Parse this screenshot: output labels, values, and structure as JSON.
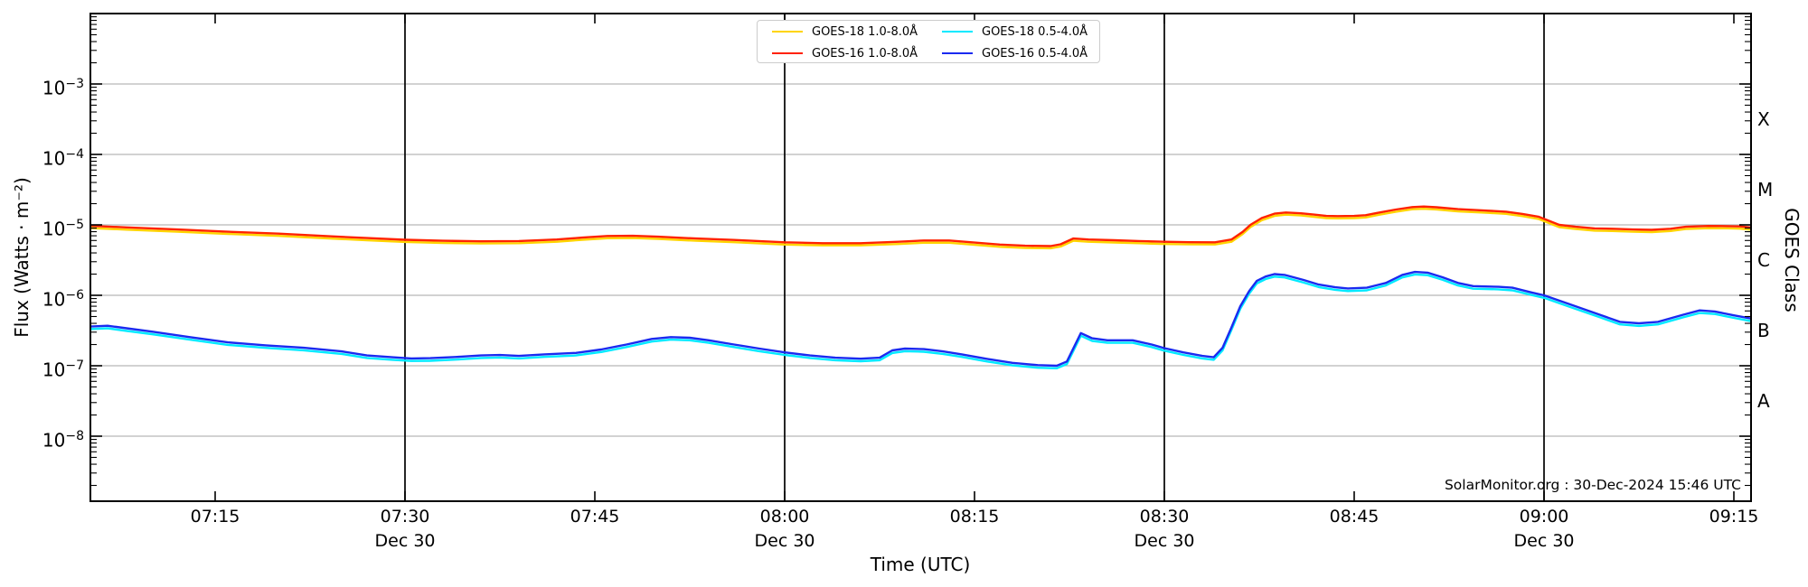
{
  "chart_data": {
    "type": "line",
    "title": "",
    "watermark": "SolarMonitor.org : 30-Dec-2024 15:46 UTC",
    "x_axis": {
      "label": "Time (UTC)",
      "t_unit": "minutes after 07:00 UTC",
      "t_min": 5.1,
      "t_max": 136.35,
      "visible_span": "07:05 to 09:17 UTC",
      "ticks": [
        {
          "t": 15,
          "label": "07:15"
        },
        {
          "t": 30,
          "label": "07:30"
        },
        {
          "t": 45,
          "label": "07:45"
        },
        {
          "t": 60,
          "label": "08:00"
        },
        {
          "t": 75,
          "label": "08:15"
        },
        {
          "t": 90,
          "label": "08:30"
        },
        {
          "t": 105,
          "label": "08:45"
        },
        {
          "t": 120,
          "label": "09:00"
        },
        {
          "t": 135,
          "label": "09:15"
        }
      ],
      "day_marker_lines": [
        {
          "t": 30,
          "label": "Dec 30"
        },
        {
          "t": 60,
          "label": "Dec 30"
        },
        {
          "t": 90,
          "label": "Dec 30"
        },
        {
          "t": 120,
          "label": "Dec 30"
        }
      ]
    },
    "y_axis": {
      "label": "Flux (Watts · m⁻²)",
      "scale": "log",
      "range_min": 1.2e-09,
      "range_max": 0.01,
      "ticks": [
        {
          "exp": -3,
          "base": "10",
          "sup": "−3"
        },
        {
          "exp": -4,
          "base": "10",
          "sup": "−4"
        },
        {
          "exp": -5,
          "base": "10",
          "sup": "−5"
        },
        {
          "exp": -6,
          "base": "10",
          "sup": "−6"
        },
        {
          "exp": -7,
          "base": "10",
          "sup": "−7"
        },
        {
          "exp": -8,
          "base": "10",
          "sup": "−8"
        }
      ]
    },
    "y_axis_right": {
      "label": "GOES Class",
      "class_labels": [
        {
          "label": "X",
          "mid_decade_exp": -3.5
        },
        {
          "label": "M",
          "mid_decade_exp": -4.5
        },
        {
          "label": "C",
          "mid_decade_exp": -5.5
        },
        {
          "label": "B",
          "mid_decade_exp": -6.5
        },
        {
          "label": "A",
          "mid_decade_exp": -7.5
        }
      ]
    },
    "grid": {
      "horizontal_decades": [
        -3,
        -4,
        -5,
        -6,
        -7,
        -8
      ],
      "color": "#b8b8b8"
    },
    "frame_color": "#000000",
    "series": [
      {
        "name": "GOES-18 1.0-8.0Å",
        "satellite": "GOES-18",
        "channel": "1.0-8.0Å",
        "color": "#ffd400",
        "derived_from": "GOES-16 1.0-8.0Å",
        "scale_factor": 0.93,
        "note": "nearly coincident with GOES-16 1.0-8.0Å, visible only as a thin fringe just below the red curve"
      },
      {
        "name": "GOES-18 0.5-4.0Å",
        "satellite": "GOES-18",
        "channel": "0.5-4.0Å",
        "color": "#00eaff",
        "derived_from": "GOES-16 0.5-4.0Å",
        "scale_factor": 0.92,
        "note": "nearly coincident with GOES-16 0.5-4.0Å, visible only as a thin fringe just below the blue curve"
      },
      {
        "name": "GOES-16 1.0-8.0Å",
        "satellite": "GOES-16",
        "channel": "1.0-8.0Å",
        "color": "#ff2200",
        "points": [
          [
            5.1,
            9.7e-06
          ],
          [
            8,
            9.2e-06
          ],
          [
            12,
            8.6e-06
          ],
          [
            16,
            8e-06
          ],
          [
            20,
            7.5e-06
          ],
          [
            24,
            6.9e-06
          ],
          [
            27,
            6.5e-06
          ],
          [
            30,
            6.15e-06
          ],
          [
            33,
            5.95e-06
          ],
          [
            36,
            5.85e-06
          ],
          [
            39,
            5.9e-06
          ],
          [
            42,
            6.2e-06
          ],
          [
            44,
            6.6e-06
          ],
          [
            46,
            6.95e-06
          ],
          [
            48,
            7e-06
          ],
          [
            50,
            6.8e-06
          ],
          [
            53,
            6.4e-06
          ],
          [
            56,
            6.1e-06
          ],
          [
            60,
            5.65e-06
          ],
          [
            63,
            5.5e-06
          ],
          [
            66,
            5.5e-06
          ],
          [
            69,
            5.75e-06
          ],
          [
            71,
            6e-06
          ],
          [
            73,
            6e-06
          ],
          [
            75,
            5.6e-06
          ],
          [
            77,
            5.25e-06
          ],
          [
            79,
            5.05e-06
          ],
          [
            81,
            5e-06
          ],
          [
            81.8,
            5.3e-06
          ],
          [
            82.8,
            6.4e-06
          ],
          [
            84,
            6.2e-06
          ],
          [
            86,
            6.05e-06
          ],
          [
            88,
            5.9e-06
          ],
          [
            90,
            5.75e-06
          ],
          [
            92,
            5.68e-06
          ],
          [
            94,
            5.66e-06
          ],
          [
            95.3,
            6.2e-06
          ],
          [
            96.2,
            8e-06
          ],
          [
            96.8,
            1e-05
          ],
          [
            97.7,
            1.25e-05
          ],
          [
            98.7,
            1.44e-05
          ],
          [
            99.6,
            1.5e-05
          ],
          [
            100.8,
            1.46e-05
          ],
          [
            101.8,
            1.4e-05
          ],
          [
            102.8,
            1.34e-05
          ],
          [
            103.7,
            1.33e-05
          ],
          [
            105,
            1.34e-05
          ],
          [
            105.9,
            1.37e-05
          ],
          [
            107,
            1.5e-05
          ],
          [
            108.3,
            1.65e-05
          ],
          [
            109.6,
            1.79e-05
          ],
          [
            110.5,
            1.82e-05
          ],
          [
            111.5,
            1.78e-05
          ],
          [
            113.2,
            1.67e-05
          ],
          [
            115.6,
            1.59e-05
          ],
          [
            117,
            1.54e-05
          ],
          [
            118.3,
            1.43e-05
          ],
          [
            119.6,
            1.3e-05
          ],
          [
            121.2,
            1e-05
          ],
          [
            122.5,
            9.4e-06
          ],
          [
            124,
            8.9e-06
          ],
          [
            125.4,
            8.8e-06
          ],
          [
            127,
            8.6e-06
          ],
          [
            128.5,
            8.5e-06
          ],
          [
            130,
            8.8e-06
          ],
          [
            131.2,
            9.4e-06
          ],
          [
            133,
            9.65e-06
          ],
          [
            134.5,
            9.6e-06
          ],
          [
            135.5,
            9.5e-06
          ],
          [
            136.3,
            9.2e-06
          ]
        ]
      },
      {
        "name": "GOES-16 0.5-4.0Å",
        "satellite": "GOES-16",
        "channel": "0.5-4.0Å",
        "color": "#1a2af0",
        "points": [
          [
            5.1,
            3.6e-07
          ],
          [
            6.5,
            3.7e-07
          ],
          [
            8,
            3.4e-07
          ],
          [
            10,
            3.05e-07
          ],
          [
            13,
            2.55e-07
          ],
          [
            16,
            2.15e-07
          ],
          [
            19,
            1.95e-07
          ],
          [
            22,
            1.8e-07
          ],
          [
            25,
            1.6e-07
          ],
          [
            27,
            1.4e-07
          ],
          [
            29,
            1.32e-07
          ],
          [
            30.5,
            1.27e-07
          ],
          [
            32,
            1.28e-07
          ],
          [
            34,
            1.33e-07
          ],
          [
            36,
            1.4e-07
          ],
          [
            37.5,
            1.42e-07
          ],
          [
            39,
            1.38e-07
          ],
          [
            41,
            1.45e-07
          ],
          [
            43.5,
            1.52e-07
          ],
          [
            45.5,
            1.7e-07
          ],
          [
            47.5,
            2e-07
          ],
          [
            49.5,
            2.4e-07
          ],
          [
            51,
            2.55e-07
          ],
          [
            52.5,
            2.5e-07
          ],
          [
            54,
            2.3e-07
          ],
          [
            56,
            2e-07
          ],
          [
            58,
            1.75e-07
          ],
          [
            60,
            1.55e-07
          ],
          [
            62,
            1.4e-07
          ],
          [
            64,
            1.3e-07
          ],
          [
            66,
            1.26e-07
          ],
          [
            67.5,
            1.3e-07
          ],
          [
            68.5,
            1.65e-07
          ],
          [
            69.5,
            1.75e-07
          ],
          [
            71,
            1.72e-07
          ],
          [
            72.5,
            1.6e-07
          ],
          [
            74,
            1.45e-07
          ],
          [
            76,
            1.25e-07
          ],
          [
            78,
            1.1e-07
          ],
          [
            80,
            1.02e-07
          ],
          [
            81.5,
            1e-07
          ],
          [
            82.3,
            1.15e-07
          ],
          [
            83.4,
            2.9e-07
          ],
          [
            84.3,
            2.45e-07
          ],
          [
            85.5,
            2.3e-07
          ],
          [
            87.5,
            2.3e-07
          ],
          [
            89,
            2e-07
          ],
          [
            90,
            1.78e-07
          ],
          [
            91.5,
            1.55e-07
          ],
          [
            93,
            1.38e-07
          ],
          [
            93.9,
            1.32e-07
          ],
          [
            94.6,
            1.8e-07
          ],
          [
            95.3,
            3.5e-07
          ],
          [
            96,
            7e-07
          ],
          [
            96.7,
            1.15e-06
          ],
          [
            97.3,
            1.6e-06
          ],
          [
            98,
            1.85e-06
          ],
          [
            98.7,
            2e-06
          ],
          [
            99.5,
            1.95e-06
          ],
          [
            101,
            1.65e-06
          ],
          [
            102.2,
            1.42e-06
          ],
          [
            103.5,
            1.3e-06
          ],
          [
            104.5,
            1.25e-06
          ],
          [
            106,
            1.28e-06
          ],
          [
            107.5,
            1.5e-06
          ],
          [
            108.8,
            1.95e-06
          ],
          [
            109.8,
            2.15e-06
          ],
          [
            110.8,
            2.1e-06
          ],
          [
            112,
            1.8e-06
          ],
          [
            113.2,
            1.5e-06
          ],
          [
            114.4,
            1.35e-06
          ],
          [
            116.4,
            1.32e-06
          ],
          [
            117.5,
            1.28e-06
          ],
          [
            119,
            1.1e-06
          ],
          [
            120,
            1e-06
          ],
          [
            122,
            7.5e-07
          ],
          [
            124.4,
            5.3e-07
          ],
          [
            126,
            4.2e-07
          ],
          [
            127.5,
            4e-07
          ],
          [
            129,
            4.2e-07
          ],
          [
            131,
            5.3e-07
          ],
          [
            132.3,
            6.1e-07
          ],
          [
            133.5,
            5.9e-07
          ],
          [
            135,
            5.2e-07
          ],
          [
            136.3,
            4.7e-07
          ]
        ]
      }
    ],
    "legend": {
      "position": "top-center",
      "columns": 2
    }
  }
}
